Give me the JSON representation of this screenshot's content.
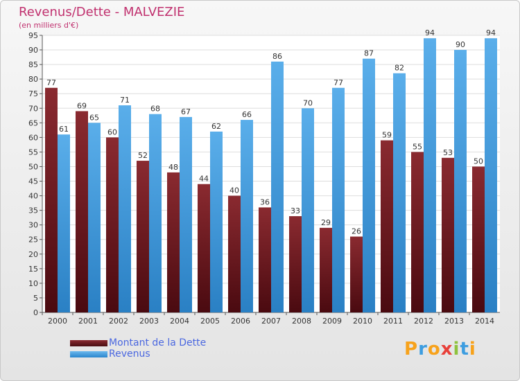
{
  "chart_data": {
    "type": "bar",
    "title": "Revenus/Dette - MALVEZIE",
    "subtitle": "(en milliers d'€)",
    "categories": [
      "2000",
      "2001",
      "2002",
      "2003",
      "2004",
      "2005",
      "2006",
      "2007",
      "2008",
      "2009",
      "2010",
      "2011",
      "2012",
      "2013",
      "2014"
    ],
    "series": [
      {
        "name": "Montant de la Dette",
        "values": [
          77,
          69,
          60,
          52,
          48,
          44,
          40,
          36,
          33,
          29,
          26,
          59,
          55,
          53,
          50
        ],
        "color": "#6e1e24"
      },
      {
        "name": "Revenus",
        "values": [
          61,
          65,
          71,
          68,
          67,
          62,
          66,
          86,
          70,
          77,
          87,
          82,
          94,
          90,
          94
        ],
        "color": "#3d9de0"
      }
    ],
    "ylim": [
      0,
      95
    ],
    "yticks": [
      0,
      5,
      10,
      15,
      20,
      25,
      30,
      35,
      40,
      45,
      50,
      55,
      60,
      65,
      70,
      75,
      80,
      85,
      90,
      95
    ],
    "grid": true,
    "legend_position": "bottom-left"
  },
  "brand": {
    "text": "Proxiti"
  }
}
